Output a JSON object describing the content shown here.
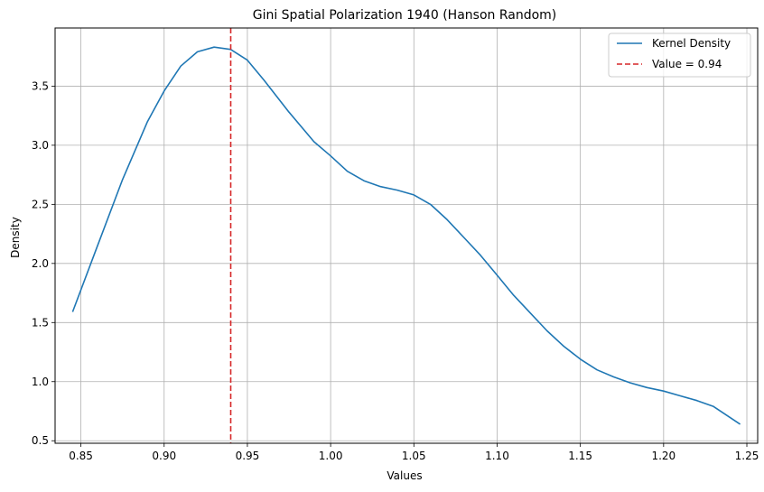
{
  "chart_data": {
    "type": "line",
    "title": "Gini Spatial Polarization 1940 (Hanson Random)",
    "xlabel": "Values",
    "ylabel": "Density",
    "xlim": [
      0.8345,
      1.2565
    ],
    "ylim": [
      0.4788,
      3.992
    ],
    "xticks": [
      0.85,
      0.9,
      0.95,
      1.0,
      1.05,
      1.1,
      1.15,
      1.2,
      1.25
    ],
    "xtick_labels": [
      "0.85",
      "0.90",
      "0.95",
      "1.00",
      "1.05",
      "1.10",
      "1.15",
      "1.20",
      "1.25"
    ],
    "yticks": [
      0.5,
      1.0,
      1.5,
      2.0,
      2.5,
      3.0,
      3.5
    ],
    "ytick_labels": [
      "0.5",
      "1.0",
      "1.5",
      "2.0",
      "2.5",
      "3.0",
      "3.5"
    ],
    "grid": true,
    "legend_position": "top-right",
    "series": [
      {
        "name": "Kernel Density",
        "color": "#1f77b4",
        "style": "solid",
        "x": [
          0.845,
          0.86,
          0.875,
          0.89,
          0.9,
          0.91,
          0.92,
          0.93,
          0.94,
          0.95,
          0.96,
          0.975,
          0.99,
          1.0,
          1.01,
          1.02,
          1.03,
          1.04,
          1.05,
          1.06,
          1.07,
          1.08,
          1.09,
          1.1,
          1.11,
          1.12,
          1.13,
          1.14,
          1.15,
          1.16,
          1.17,
          1.18,
          1.19,
          1.2,
          1.21,
          1.22,
          1.23,
          1.246
        ],
        "y": [
          1.59,
          2.15,
          2.71,
          3.2,
          3.46,
          3.67,
          3.79,
          3.83,
          3.81,
          3.72,
          3.55,
          3.28,
          3.03,
          2.91,
          2.78,
          2.7,
          2.65,
          2.62,
          2.58,
          2.5,
          2.37,
          2.22,
          2.07,
          1.9,
          1.73,
          1.58,
          1.43,
          1.3,
          1.19,
          1.1,
          1.04,
          0.99,
          0.95,
          0.92,
          0.88,
          0.84,
          0.79,
          0.64
        ]
      },
      {
        "name": "Value = 0.94",
        "color": "#d62728",
        "style": "dashed",
        "x_value": 0.94
      }
    ]
  }
}
